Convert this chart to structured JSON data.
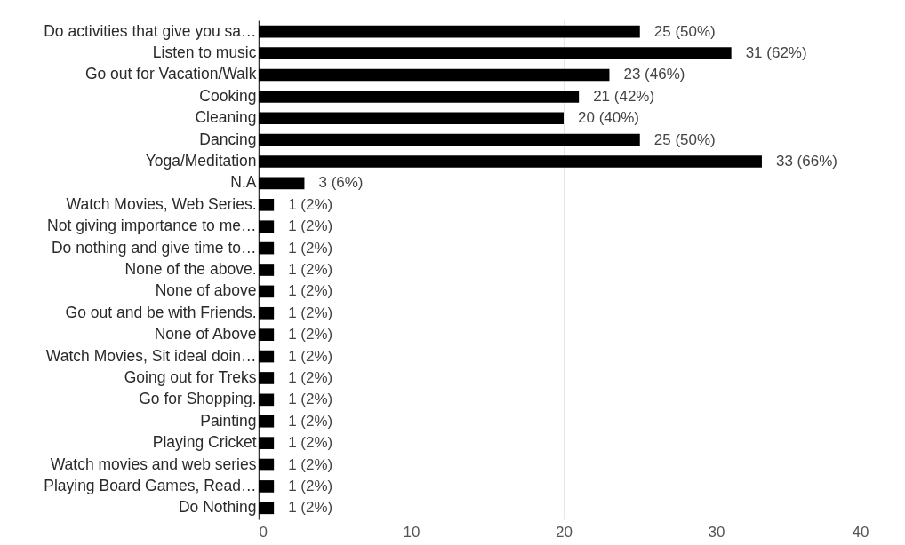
{
  "chart_data": {
    "type": "bar",
    "orientation": "horizontal",
    "categories": [
      "Do activities that give you sa…",
      "Listen to music",
      "Go out for Vacation/Walk",
      "Cooking",
      "Cleaning",
      "Dancing",
      "Yoga/Meditation",
      "N.A",
      "Watch Movies, Web Series.",
      "Not giving importance to me…",
      "Do nothing and give time to…",
      "None of the above.",
      "None of above",
      "Go out and be with Friends.",
      "None of Above",
      "Watch Movies, Sit ideal doin…",
      "Going out for Treks",
      "Go for Shopping.",
      "Painting",
      "Playing Cricket",
      "Watch movies and web series",
      "Playing Board Games, Read…",
      "Do Nothing"
    ],
    "values": [
      25,
      31,
      23,
      21,
      20,
      25,
      33,
      3,
      1,
      1,
      1,
      1,
      1,
      1,
      1,
      1,
      1,
      1,
      1,
      1,
      1,
      1,
      1
    ],
    "value_labels": [
      "25 (50%)",
      "31 (62%)",
      "23 (46%)",
      "21 (42%)",
      "20 (40%)",
      "25 (50%)",
      "33 (66%)",
      "3 (6%)",
      "1 (2%)",
      "1 (2%)",
      "1 (2%)",
      "1 (2%)",
      "1 (2%)",
      "1 (2%)",
      "1 (2%)",
      "1 (2%)",
      "1 (2%)",
      "1 (2%)",
      "1 (2%)",
      "1 (2%)",
      "1 (2%)",
      "1 (2%)",
      "1 (2%)"
    ],
    "color": "#000000",
    "xlim": [
      0,
      40
    ],
    "xticks": [
      0,
      10,
      20,
      30,
      40
    ],
    "grid": "x"
  }
}
